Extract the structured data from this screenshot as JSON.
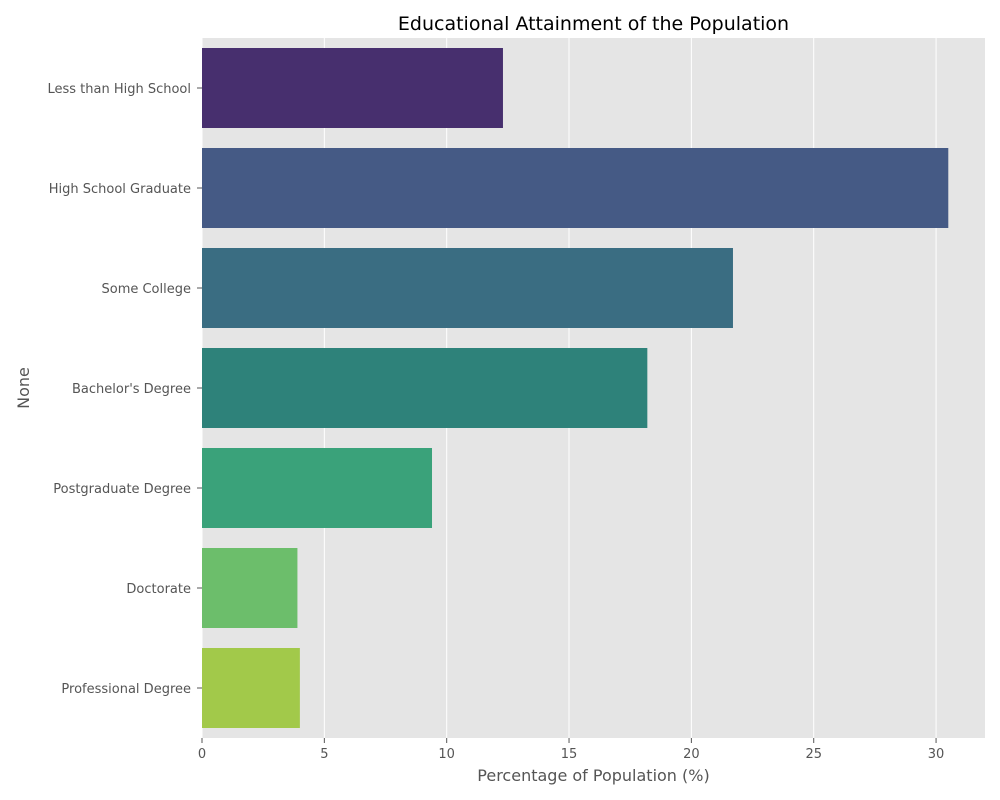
{
  "chart_data": {
    "type": "bar",
    "orientation": "horizontal",
    "title": "Educational Attainment of the Population",
    "xlabel": "Percentage of Population (%)",
    "ylabel": "None",
    "categories": [
      "Less than High School",
      "High School Graduate",
      "Some College",
      "Bachelor's Degree",
      "Postgraduate Degree",
      "Doctorate",
      "Professional Degree"
    ],
    "values": [
      12.3,
      30.5,
      21.7,
      18.2,
      9.4,
      3.9,
      4.0
    ],
    "colors": [
      "#472f6e",
      "#455a85",
      "#3a6d82",
      "#2e827a",
      "#3aa27a",
      "#6cbe6b",
      "#a2c94a"
    ],
    "xlim": [
      0,
      32
    ],
    "xticks": [
      0,
      5,
      10,
      15,
      20,
      25,
      30
    ],
    "grid": true,
    "background": "#e5e5e5",
    "grid_color": "#ffffff"
  }
}
